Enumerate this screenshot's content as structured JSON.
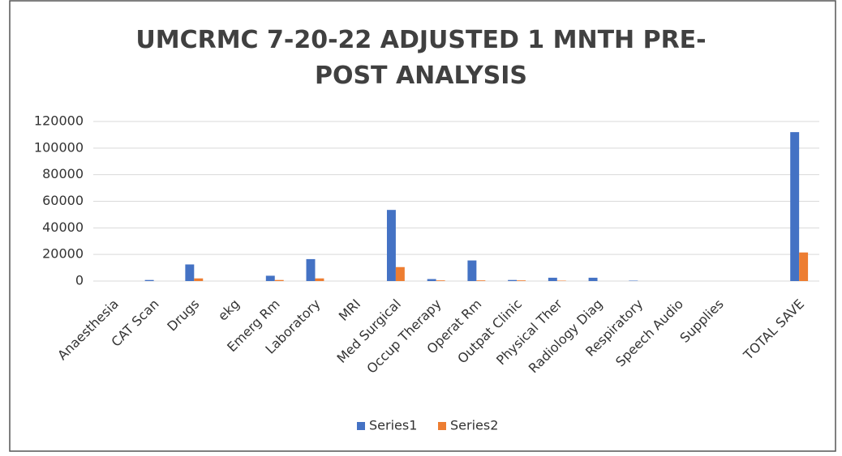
{
  "chart_data": {
    "type": "bar",
    "title": "UMCRMC 7-20-22 ADJUSTED 1 MNTH PRE-POST ANALYSIS",
    "categories": [
      "Anaesthesia",
      "CAT Scan",
      "Drugs",
      "ekg",
      "Emerg Rm",
      "Laboratory",
      "MRI",
      "Med Surgical",
      "Occup Therapy",
      "Operat Rm",
      "Outpat Clinic",
      "Physical Ther",
      "Radiology Diag",
      "Respiratory",
      "Speech Audio",
      "Supplies",
      null,
      "TOTAL SAVE"
    ],
    "series": [
      {
        "name": "Series1",
        "color": "#4472c4",
        "values": [
          0,
          800,
          12500,
          0,
          4000,
          16500,
          0,
          53500,
          1500,
          15500,
          800,
          2500,
          2500,
          300,
          0,
          0,
          null,
          112000
        ]
      },
      {
        "name": "Series2",
        "color": "#ed7d31",
        "values": [
          0,
          0,
          2000,
          0,
          800,
          2000,
          0,
          10500,
          500,
          500,
          500,
          300,
          0,
          0,
          0,
          0,
          null,
          21500
        ]
      }
    ],
    "ylim": [
      0,
      120000
    ],
    "yticks": [
      0,
      20000,
      40000,
      60000,
      80000,
      100000,
      120000
    ],
    "grid": true,
    "legend": "bottom"
  }
}
